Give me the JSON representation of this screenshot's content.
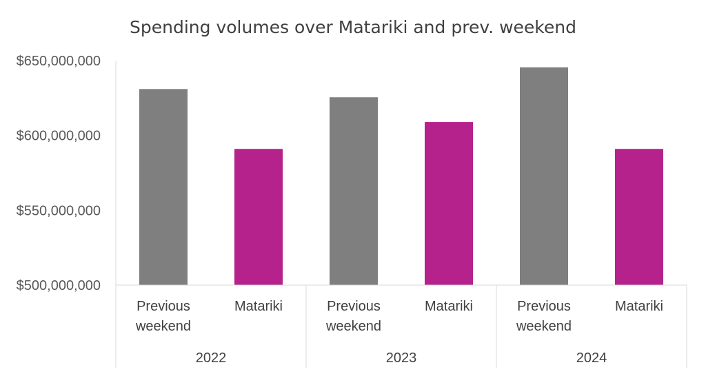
{
  "chart_data": {
    "type": "bar",
    "title": "Spending volumes over Matariki and prev. weekend",
    "xlabel": "",
    "ylabel": "",
    "ylim": [
      500000000,
      650000000
    ],
    "y_ticks": [
      "$500,000,000",
      "$550,000,000",
      "$600,000,000",
      "$650,000,000"
    ],
    "grid": false,
    "legend": "none",
    "groups": [
      {
        "label": "2022",
        "bars": [
          {
            "label_lines": [
              "Previous",
              "weekend"
            ],
            "value": 631000000,
            "color": "#7f7f7f"
          },
          {
            "label_lines": [
              "Matariki"
            ],
            "value": 591000000,
            "color": "#b5228b"
          }
        ]
      },
      {
        "label": "2023",
        "bars": [
          {
            "label_lines": [
              "Previous",
              "weekend"
            ],
            "value": 625500000,
            "color": "#7f7f7f"
          },
          {
            "label_lines": [
              "Matariki"
            ],
            "value": 609000000,
            "color": "#b5228b"
          }
        ]
      },
      {
        "label": "2024",
        "bars": [
          {
            "label_lines": [
              "Previous",
              "weekend"
            ],
            "value": 645500000,
            "color": "#7f7f7f"
          },
          {
            "label_lines": [
              "Matariki"
            ],
            "value": 591000000,
            "color": "#b5228b"
          }
        ]
      }
    ]
  }
}
